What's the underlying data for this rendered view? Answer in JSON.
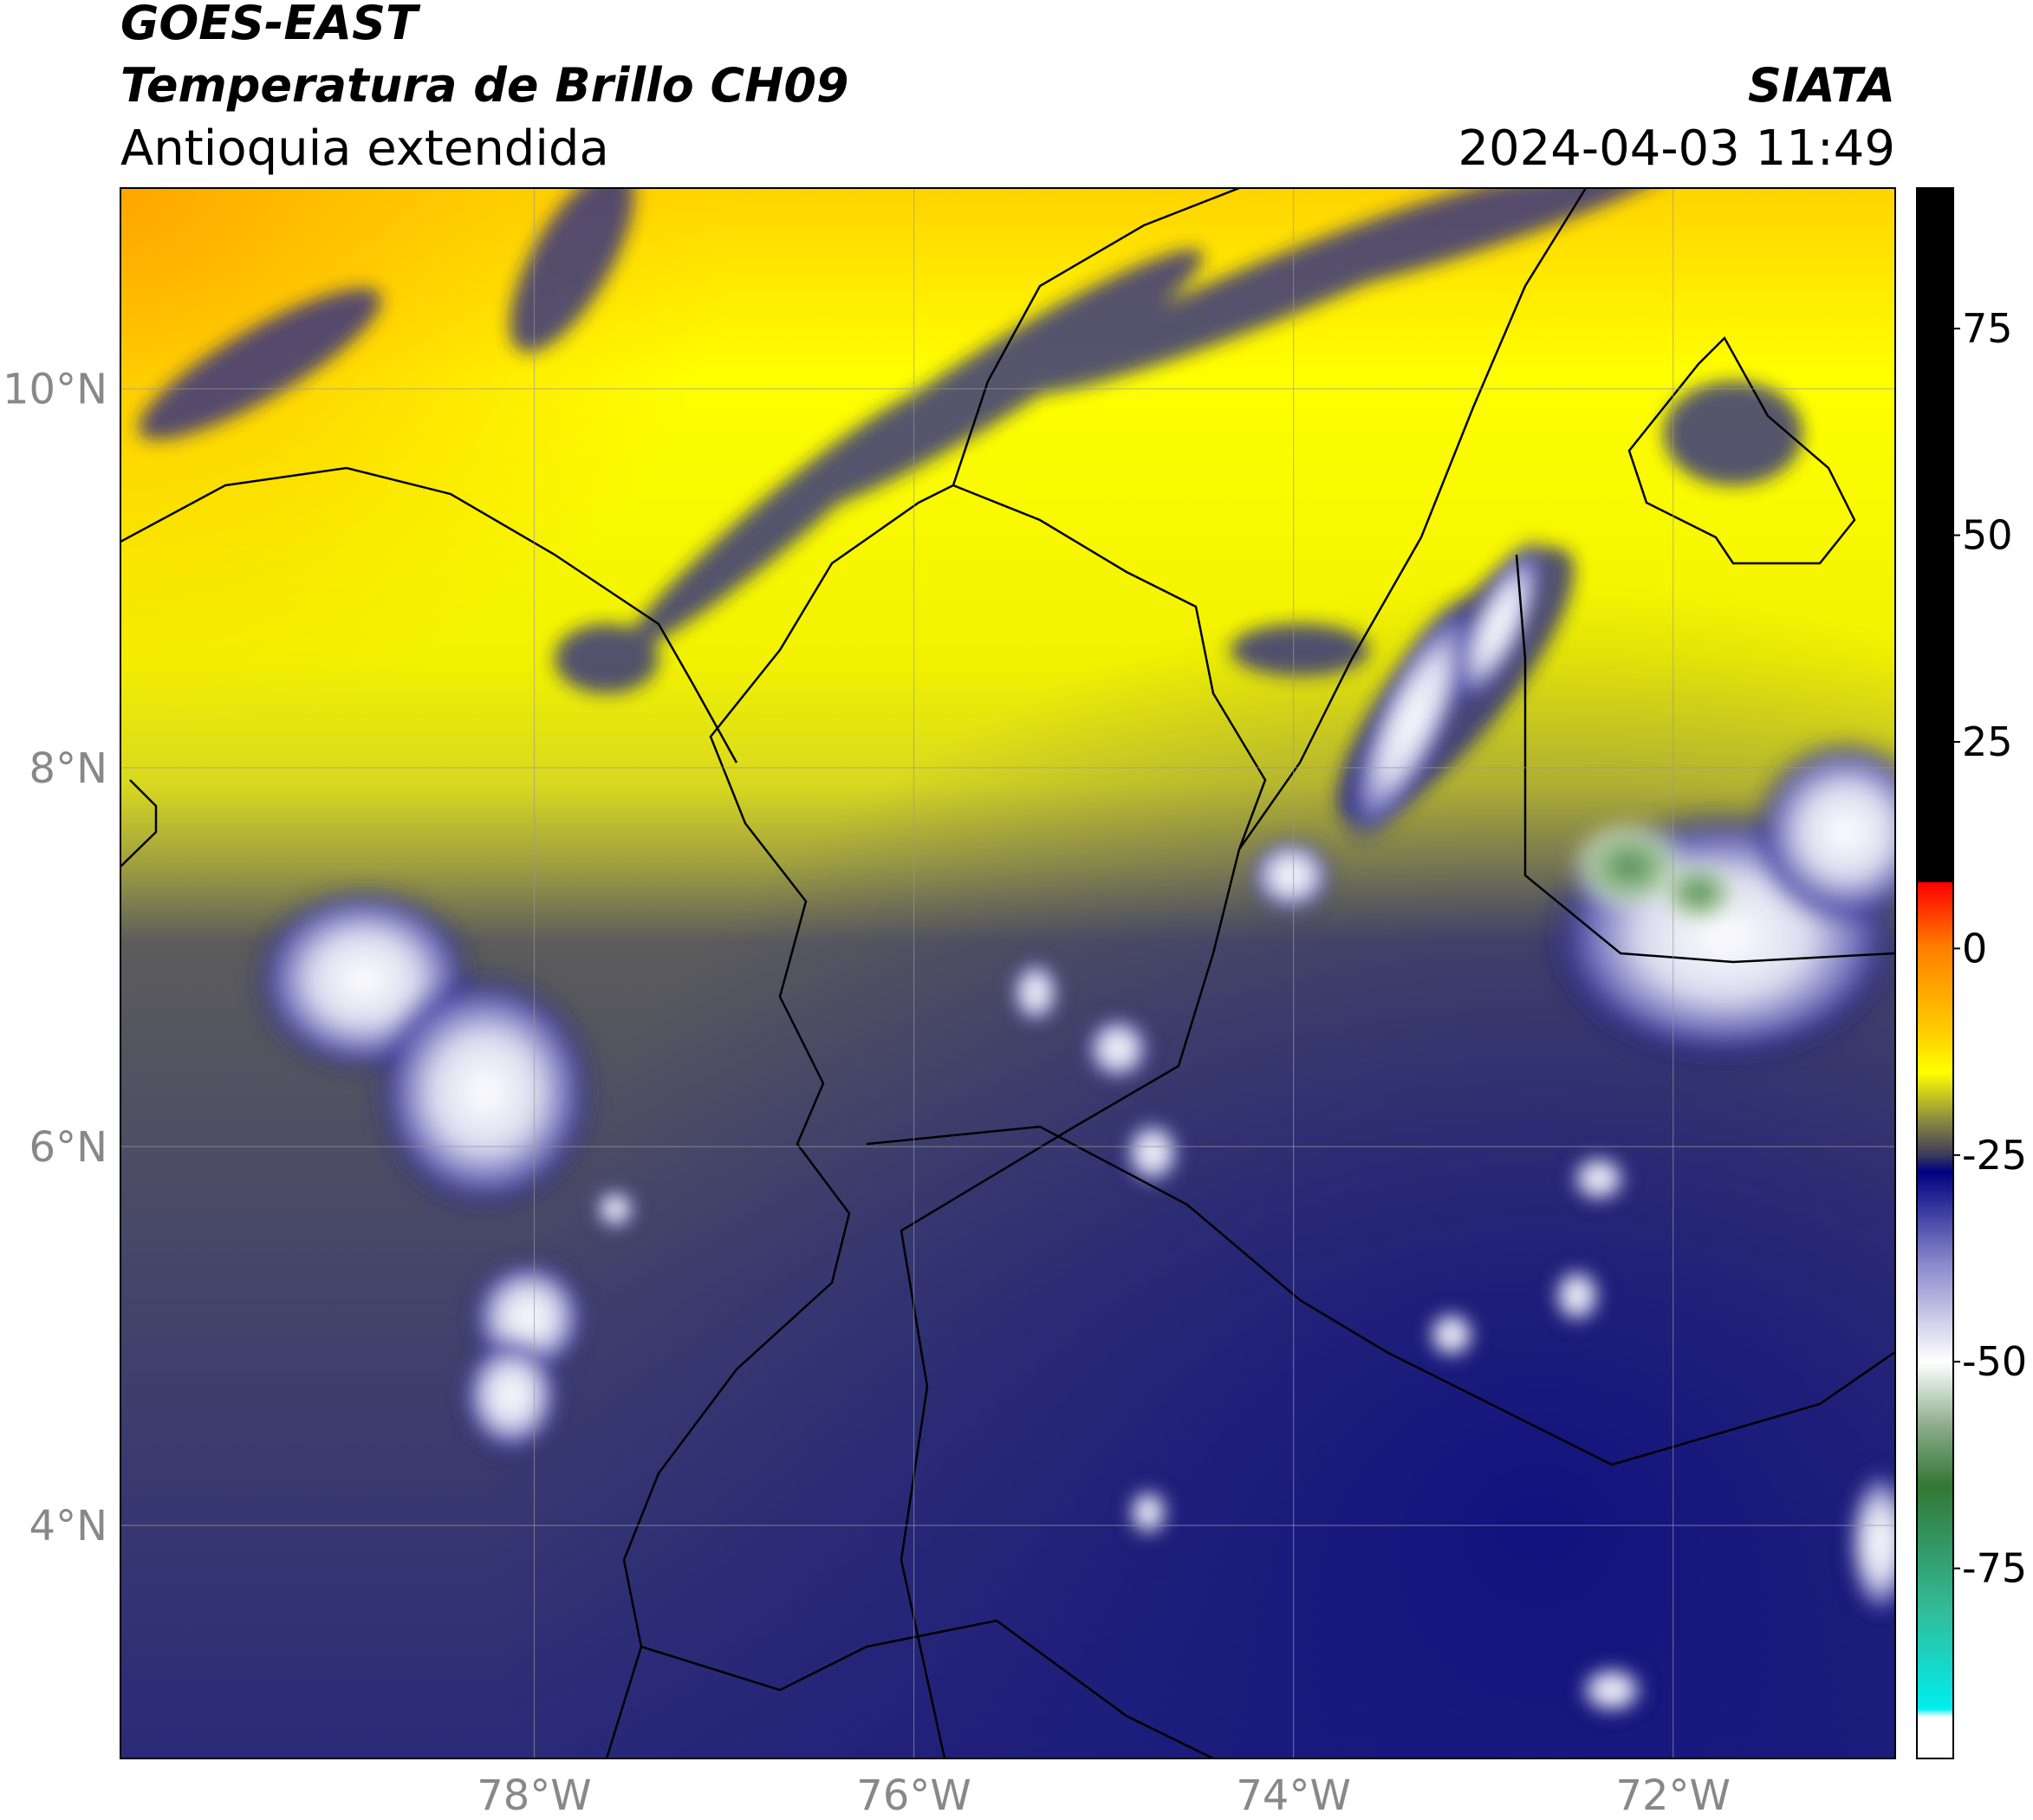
{
  "header": {
    "title": "GOES-EAST",
    "subtitle": "Temperatura de Brillo CH09",
    "region": "Antioquia extendida",
    "source": "SIATA",
    "datetime": "2024-04-03 11:49"
  },
  "map": {
    "xlim": [
      -80.18,
      -70.83
    ],
    "ylim": [
      2.77,
      11.06
    ],
    "xticks": [
      {
        "value": -78,
        "label": "78°W"
      },
      {
        "value": -76,
        "label": "76°W"
      },
      {
        "value": -74,
        "label": "74°W"
      },
      {
        "value": -72,
        "label": "72°W"
      }
    ],
    "yticks": [
      {
        "value": 10,
        "label": "10°N"
      },
      {
        "value": 8,
        "label": "8°N"
      },
      {
        "value": 6,
        "label": "6°N"
      },
      {
        "value": 4,
        "label": "4°N"
      }
    ],
    "grid": true
  },
  "colorbar": {
    "lim": [
      -98,
      92
    ],
    "ticks": [
      75,
      50,
      25,
      0,
      -25,
      -50,
      -75
    ],
    "stops": [
      {
        "value": 92,
        "color": "#000000"
      },
      {
        "value": 8,
        "color": "#000000"
      },
      {
        "value": 8,
        "color": "#ff0000"
      },
      {
        "value": 0,
        "color": "#ff8000"
      },
      {
        "value": -10,
        "color": "#ffcc00"
      },
      {
        "value": -15,
        "color": "#ffff00"
      },
      {
        "value": -20,
        "color": "#9a9a3a"
      },
      {
        "value": -25,
        "color": "#3a3a5a"
      },
      {
        "value": -27,
        "color": "#000080"
      },
      {
        "value": -38,
        "color": "#8888cc"
      },
      {
        "value": -50,
        "color": "#ffffff"
      },
      {
        "value": -58,
        "color": "#88aa88"
      },
      {
        "value": -65,
        "color": "#337733"
      },
      {
        "value": -80,
        "color": "#33bb99"
      },
      {
        "value": -92,
        "color": "#00eeee"
      },
      {
        "value": -93,
        "color": "#ffffff"
      },
      {
        "value": -98,
        "color": "#ffffff"
      }
    ]
  }
}
